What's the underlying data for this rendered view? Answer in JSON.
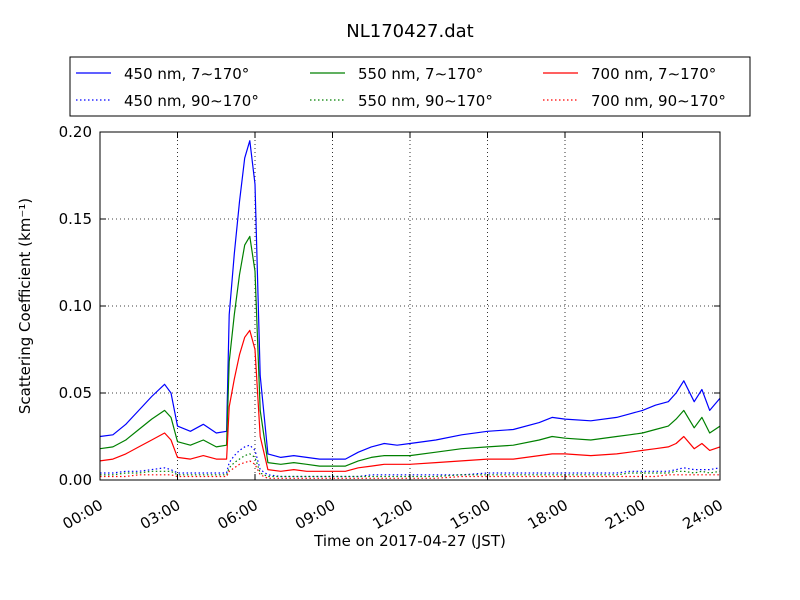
{
  "chart_data": {
    "type": "line",
    "title": "NL170427.dat",
    "xlabel": "Time on 2017-04-27 (JST)",
    "ylabel": "Scattering Coefficient (km⁻¹)",
    "xlim": [
      "00:00",
      "24:00"
    ],
    "ylim": [
      0,
      0.2
    ],
    "x_ticks": [
      "00:00",
      "03:00",
      "06:00",
      "09:00",
      "12:00",
      "15:00",
      "18:00",
      "21:00",
      "24:00"
    ],
    "y_ticks": [
      "0.00",
      "0.05",
      "0.10",
      "0.15",
      "0.20"
    ],
    "grid": true,
    "legend_position": "top (above plot, 3 columns)",
    "x_hours": [
      0.0,
      0.5,
      1.0,
      1.5,
      2.0,
      2.5,
      2.75,
      3.0,
      3.5,
      4.0,
      4.5,
      4.9,
      5.0,
      5.2,
      5.4,
      5.6,
      5.8,
      6.0,
      6.2,
      6.5,
      7.0,
      7.5,
      8.0,
      8.5,
      9.0,
      9.5,
      10.0,
      10.5,
      11.0,
      11.5,
      12.0,
      13.0,
      14.0,
      15.0,
      16.0,
      17.0,
      17.5,
      18.0,
      19.0,
      20.0,
      20.5,
      21.0,
      21.5,
      22.0,
      22.3,
      22.6,
      23.0,
      23.3,
      23.6,
      24.0
    ],
    "series": [
      {
        "name": "450 nm, 7∼170°",
        "color": "#0000ff",
        "style": "solid",
        "values": [
          0.025,
          0.026,
          0.032,
          0.04,
          0.048,
          0.055,
          0.05,
          0.031,
          0.028,
          0.032,
          0.027,
          0.028,
          0.095,
          0.13,
          0.16,
          0.185,
          0.195,
          0.17,
          0.06,
          0.015,
          0.013,
          0.014,
          0.013,
          0.012,
          0.012,
          0.012,
          0.016,
          0.019,
          0.021,
          0.02,
          0.021,
          0.023,
          0.026,
          0.028,
          0.029,
          0.033,
          0.036,
          0.035,
          0.034,
          0.036,
          0.038,
          0.04,
          0.043,
          0.045,
          0.05,
          0.057,
          0.045,
          0.052,
          0.04,
          0.047
        ]
      },
      {
        "name": "450 nm, 90∼170°",
        "color": "#0000ff",
        "style": "dotted",
        "values": [
          0.004,
          0.004,
          0.005,
          0.005,
          0.006,
          0.007,
          0.006,
          0.004,
          0.004,
          0.004,
          0.004,
          0.004,
          0.01,
          0.014,
          0.017,
          0.019,
          0.02,
          0.017,
          0.006,
          0.003,
          0.002,
          0.002,
          0.002,
          0.002,
          0.002,
          0.002,
          0.002,
          0.003,
          0.003,
          0.003,
          0.003,
          0.003,
          0.003,
          0.004,
          0.004,
          0.004,
          0.004,
          0.004,
          0.004,
          0.004,
          0.005,
          0.005,
          0.005,
          0.005,
          0.006,
          0.007,
          0.006,
          0.006,
          0.006,
          0.007
        ]
      },
      {
        "name": "550 nm, 7∼170°",
        "color": "#008000",
        "style": "solid",
        "values": [
          0.018,
          0.019,
          0.023,
          0.029,
          0.035,
          0.04,
          0.036,
          0.022,
          0.02,
          0.023,
          0.019,
          0.02,
          0.068,
          0.095,
          0.118,
          0.135,
          0.14,
          0.12,
          0.04,
          0.01,
          0.009,
          0.01,
          0.009,
          0.008,
          0.008,
          0.008,
          0.011,
          0.013,
          0.014,
          0.014,
          0.014,
          0.016,
          0.018,
          0.019,
          0.02,
          0.023,
          0.025,
          0.024,
          0.023,
          0.025,
          0.026,
          0.027,
          0.029,
          0.031,
          0.035,
          0.04,
          0.03,
          0.036,
          0.027,
          0.031
        ]
      },
      {
        "name": "550 nm, 90∼170°",
        "color": "#008000",
        "style": "dotted",
        "values": [
          0.003,
          0.003,
          0.004,
          0.004,
          0.005,
          0.005,
          0.005,
          0.003,
          0.003,
          0.003,
          0.003,
          0.003,
          0.007,
          0.01,
          0.012,
          0.014,
          0.015,
          0.013,
          0.004,
          0.002,
          0.002,
          0.002,
          0.002,
          0.002,
          0.002,
          0.002,
          0.002,
          0.002,
          0.002,
          0.002,
          0.002,
          0.002,
          0.003,
          0.003,
          0.003,
          0.003,
          0.003,
          0.003,
          0.003,
          0.003,
          0.004,
          0.004,
          0.004,
          0.004,
          0.005,
          0.005,
          0.004,
          0.005,
          0.004,
          0.005
        ]
      },
      {
        "name": "700 nm, 7∼170°",
        "color": "#ff0000",
        "style": "solid",
        "values": [
          0.011,
          0.012,
          0.015,
          0.019,
          0.023,
          0.027,
          0.023,
          0.013,
          0.012,
          0.014,
          0.012,
          0.012,
          0.042,
          0.058,
          0.072,
          0.082,
          0.086,
          0.075,
          0.025,
          0.006,
          0.005,
          0.006,
          0.005,
          0.005,
          0.005,
          0.005,
          0.007,
          0.008,
          0.009,
          0.009,
          0.009,
          0.01,
          0.011,
          0.012,
          0.012,
          0.014,
          0.015,
          0.015,
          0.014,
          0.015,
          0.016,
          0.017,
          0.018,
          0.019,
          0.021,
          0.025,
          0.018,
          0.021,
          0.017,
          0.019
        ]
      },
      {
        "name": "700 nm, 90∼170°",
        "color": "#ff0000",
        "style": "dotted",
        "values": [
          0.002,
          0.002,
          0.002,
          0.003,
          0.003,
          0.003,
          0.003,
          0.002,
          0.002,
          0.002,
          0.002,
          0.002,
          0.005,
          0.007,
          0.009,
          0.01,
          0.011,
          0.009,
          0.003,
          0.001,
          0.001,
          0.001,
          0.001,
          0.001,
          0.001,
          0.001,
          0.001,
          0.001,
          0.001,
          0.001,
          0.001,
          0.001,
          0.002,
          0.002,
          0.002,
          0.002,
          0.002,
          0.002,
          0.002,
          0.002,
          0.002,
          0.002,
          0.002,
          0.003,
          0.003,
          0.003,
          0.003,
          0.003,
          0.003,
          0.003
        ]
      }
    ]
  }
}
